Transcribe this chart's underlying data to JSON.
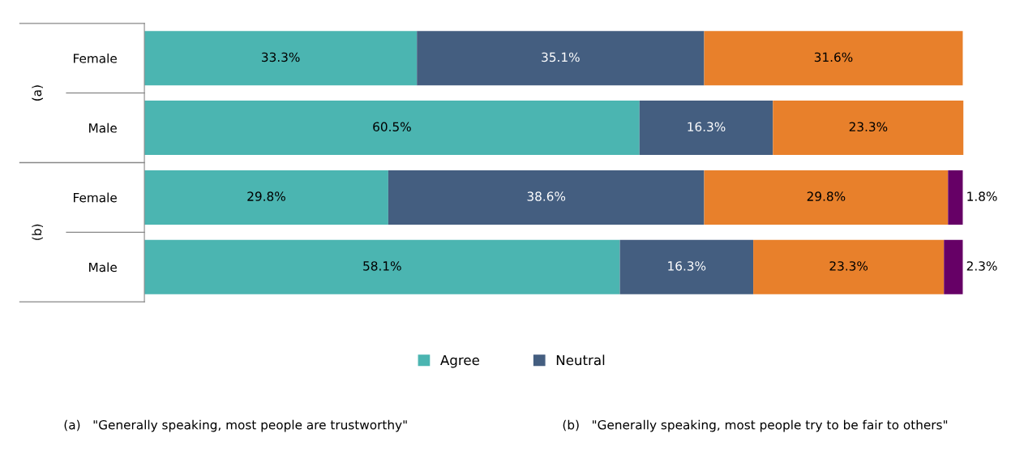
{
  "chart_data": {
    "type": "bar",
    "orientation": "horizontal",
    "stacked": true,
    "legend": "bottom",
    "grid": false,
    "categories": [
      "Female",
      "Male",
      "Female",
      "Male"
    ],
    "series": [
      {
        "name": "Agree",
        "color": "#4bb5b1",
        "values": [
          33.3,
          60.5,
          29.8,
          58.1
        ],
        "value_labels": [
          "33.3%",
          "60.5%",
          "29.8%",
          "58.1%"
        ]
      },
      {
        "name": "Neutral",
        "color": "#445e80",
        "values": [
          35.1,
          16.3,
          38.6,
          16.3
        ],
        "value_labels": [
          "35.1%",
          "16.3%",
          "38.6%",
          "16.3%"
        ]
      },
      {
        "color": "#e8802b",
        "values": [
          31.6,
          23.3,
          29.8,
          23.3
        ],
        "value_labels": [
          "31.6%",
          "23.3%",
          "29.8%",
          "23.3%"
        ]
      },
      {
        "color": "#660066",
        "values": [
          null,
          null,
          1.8,
          2.3
        ],
        "value_labels": [
          null,
          null,
          "1.8%",
          "2.3%"
        ]
      }
    ],
    "annotations": [
      "(a)",
      "(b)",
      "(a)   \"Generally speaking, most people are trustworthy\"",
      "(b)   \"Generally speaking, most people try to be fair to others\""
    ]
  }
}
